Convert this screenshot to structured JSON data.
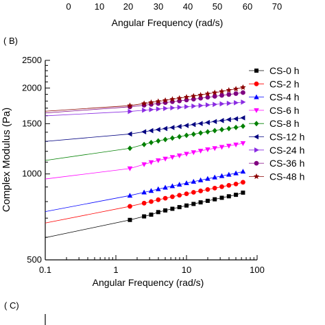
{
  "top_fragment": {
    "ticks": [
      "0",
      "10",
      "20",
      "30",
      "40",
      "50",
      "60",
      "70"
    ],
    "xlabel": "Angular Frequency (rad/s)"
  },
  "panel_b_label": "( B)",
  "panel_c_label": "( C)",
  "chart_data": {
    "type": "line",
    "xlabel": "Angular Frequency (rad/s)",
    "ylabel": "Complex Modulus (Pa)",
    "xscale": "log",
    "yscale": "log",
    "xlim": [
      0.1,
      100
    ],
    "ylim": [
      500,
      2500
    ],
    "xticks": [
      "0.1",
      "1",
      "10",
      "100"
    ],
    "yticks": [
      "500",
      "1000",
      "1500",
      "2000",
      "2500"
    ],
    "legend_position": "right",
    "x": [
      1.58,
      2.51,
      3.16,
      3.98,
      5.01,
      6.31,
      7.94,
      10,
      12.59,
      15.85,
      19.95,
      25.12,
      31.62,
      39.81,
      50.12,
      63.1
    ],
    "series": [
      {
        "name": "CS-0 h",
        "color": "#000000",
        "marker": "square",
        "extrap_y01": 598,
        "values": [
          690,
          710,
          720,
          735,
          745,
          755,
          765,
          775,
          785,
          795,
          805,
          815,
          825,
          835,
          845,
          860
        ]
      },
      {
        "name": "CS-2 h",
        "color": "#ff0000",
        "marker": "circle",
        "extrap_y01": 673,
        "values": [
          770,
          790,
          800,
          812,
          822,
          832,
          842,
          852,
          862,
          872,
          882,
          892,
          902,
          912,
          922,
          935
        ]
      },
      {
        "name": "CS-4 h",
        "color": "#0000ff",
        "marker": "triangle-up",
        "extrap_y01": 738,
        "values": [
          840,
          862,
          873,
          885,
          896,
          907,
          918,
          929,
          940,
          951,
          962,
          973,
          984,
          995,
          1006,
          1020
        ]
      },
      {
        "name": "CS-6 h",
        "color": "#ff00ff",
        "marker": "triangle-down",
        "extrap_y01": 960,
        "values": [
          1045,
          1080,
          1098,
          1115,
          1130,
          1145,
          1160,
          1175,
          1190,
          1205,
          1218,
          1230,
          1242,
          1254,
          1266,
          1280
        ]
      },
      {
        "name": "CS-8 h",
        "color": "#008000",
        "marker": "diamond",
        "extrap_y01": 1115,
        "values": [
          1230,
          1268,
          1288,
          1305,
          1320,
          1335,
          1350,
          1365,
          1378,
          1392,
          1405,
          1418,
          1430,
          1442,
          1455,
          1470
        ]
      },
      {
        "name": "CS-12 h",
        "color": "#000080",
        "marker": "triangle-left",
        "extrap_y01": 1300,
        "values": [
          1380,
          1405,
          1418,
          1430,
          1442,
          1454,
          1466,
          1478,
          1490,
          1502,
          1514,
          1526,
          1538,
          1550,
          1560,
          1572
        ]
      },
      {
        "name": "CS-24 h",
        "color": "#8a2be2",
        "marker": "triangle-right",
        "extrap_y01": 1598,
        "values": [
          1655,
          1672,
          1680,
          1688,
          1696,
          1704,
          1712,
          1720,
          1728,
          1736,
          1744,
          1752,
          1760,
          1768,
          1776,
          1785
        ]
      },
      {
        "name": "CS-36 h",
        "color": "#800080",
        "marker": "circle",
        "extrap_y01": 1635,
        "values": [
          1718,
          1740,
          1752,
          1765,
          1778,
          1790,
          1802,
          1815,
          1828,
          1842,
          1856,
          1870,
          1884,
          1898,
          1912,
          1928
        ]
      },
      {
        "name": "CS-48 h",
        "color": "#8b0000",
        "marker": "star",
        "extrap_y01": 1658,
        "values": [
          1735,
          1765,
          1780,
          1795,
          1810,
          1826,
          1842,
          1858,
          1874,
          1890,
          1908,
          1926,
          1945,
          1965,
          1985,
          2010
        ]
      }
    ]
  }
}
